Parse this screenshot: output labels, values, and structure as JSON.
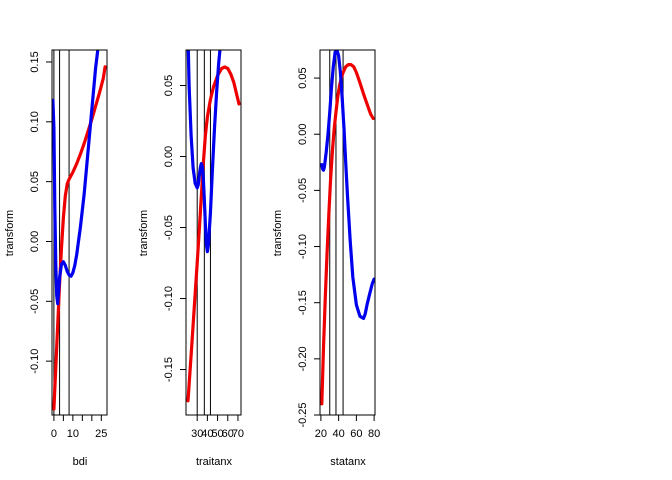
{
  "chart_data": [
    {
      "type": "line",
      "xlabel": "bdi",
      "ylabel": "transform",
      "xlim": [
        -1,
        28
      ],
      "ylim": [
        -0.145,
        0.16
      ],
      "xticks": [
        0,
        5,
        10,
        15,
        20,
        25
      ],
      "xtick_labels": [
        "0",
        "",
        "10",
        "",
        "",
        "25"
      ],
      "yticks": [
        -0.1,
        -0.05,
        0.0,
        0.05,
        0.1,
        0.15
      ],
      "ytick_labels": [
        "-0.10",
        "-0.05",
        "0.00",
        "0.05",
        "0.10",
        "0.15"
      ],
      "vlines": [
        0,
        3,
        8
      ],
      "series": [
        {
          "name": "red",
          "color": "#ee0000",
          "x": [
            0,
            1,
            2,
            3,
            4,
            5,
            6,
            7,
            8,
            10,
            12,
            14,
            16,
            18,
            20,
            22,
            24,
            26,
            27
          ],
          "y": [
            -0.14,
            -0.105,
            -0.07,
            -0.035,
            -0.005,
            0.02,
            0.038,
            0.048,
            0.052,
            0.058,
            0.065,
            0.073,
            0.082,
            0.092,
            0.102,
            0.113,
            0.124,
            0.136,
            0.146
          ]
        },
        {
          "name": "blue",
          "color": "#0000ee",
          "x": [
            -0.5,
            0,
            0.5,
            1,
            1.5,
            2,
            3,
            4,
            5,
            6,
            7,
            8,
            9,
            10,
            11,
            12,
            14,
            16,
            18,
            20,
            22,
            23.5
          ],
          "y": [
            0.118,
            0.095,
            0.03,
            -0.02,
            -0.045,
            -0.052,
            -0.03,
            -0.019,
            -0.017,
            -0.02,
            -0.025,
            -0.028,
            -0.029,
            -0.026,
            -0.02,
            -0.011,
            0.012,
            0.04,
            0.075,
            0.11,
            0.145,
            0.165
          ]
        }
      ]
    },
    {
      "type": "line",
      "xlabel": "traitanx",
      "ylabel": "transform",
      "xlim": [
        19,
        73
      ],
      "ylim": [
        -0.182,
        0.075
      ],
      "xticks": [
        30,
        40,
        50,
        60,
        70
      ],
      "xtick_labels": [
        "30",
        "40",
        "50",
        "60",
        "70"
      ],
      "yticks": [
        -0.15,
        -0.1,
        -0.05,
        0.0,
        0.05
      ],
      "ytick_labels": [
        "-0.15",
        "-0.10",
        "-0.05",
        "0.00",
        "0.05"
      ],
      "vlines": [
        30,
        37,
        43
      ],
      "series": [
        {
          "name": "red",
          "color": "#ee0000",
          "x": [
            21,
            24,
            27,
            30,
            33,
            36,
            38,
            40,
            43,
            46,
            50,
            54,
            57,
            60,
            63,
            66,
            69,
            71
          ],
          "y": [
            -0.172,
            -0.14,
            -0.108,
            -0.075,
            -0.04,
            -0.005,
            0.015,
            0.028,
            0.04,
            0.049,
            0.057,
            0.062,
            0.063,
            0.062,
            0.058,
            0.052,
            0.043,
            0.037
          ]
        },
        {
          "name": "blue",
          "color": "#0000ee",
          "x": [
            21,
            22,
            24,
            26,
            28,
            30,
            31,
            32,
            33,
            34,
            35,
            36,
            37,
            38,
            39,
            40,
            41,
            43,
            45,
            47,
            49,
            51,
            53,
            54
          ],
          "y": [
            0.085,
            0.05,
            0.015,
            -0.008,
            -0.019,
            -0.022,
            -0.02,
            -0.014,
            -0.008,
            -0.005,
            -0.007,
            -0.015,
            -0.03,
            -0.048,
            -0.062,
            -0.067,
            -0.062,
            -0.04,
            -0.008,
            0.02,
            0.045,
            0.065,
            0.08,
            0.09
          ]
        }
      ]
    },
    {
      "type": "line",
      "xlabel": "statanx",
      "ylabel": "transform",
      "xlim": [
        19,
        81
      ],
      "ylim": [
        -0.25,
        0.075
      ],
      "xticks": [
        20,
        40,
        60,
        80
      ],
      "xtick_labels": [
        "20",
        "40",
        "60",
        "80"
      ],
      "yticks": [
        -0.25,
        -0.2,
        -0.15,
        -0.1,
        -0.05,
        0.0,
        0.05
      ],
      "ytick_labels": [
        "-0.25",
        "-0.20",
        "-0.15",
        "-0.10",
        "-0.05",
        "0.00",
        "0.05"
      ],
      "vlines": [
        30,
        37,
        45
      ],
      "series": [
        {
          "name": "red",
          "color": "#ee0000",
          "x": [
            21,
            23,
            25,
            27,
            29,
            31,
            33,
            35,
            37,
            39,
            41,
            43,
            45,
            48,
            51,
            54,
            57,
            60,
            64,
            68,
            72,
            76,
            79
          ],
          "y": [
            -0.24,
            -0.19,
            -0.145,
            -0.105,
            -0.07,
            -0.04,
            -0.015,
            0.005,
            0.02,
            0.033,
            0.043,
            0.05,
            0.055,
            0.06,
            0.062,
            0.062,
            0.06,
            0.055,
            0.046,
            0.036,
            0.027,
            0.018,
            0.014
          ]
        },
        {
          "name": "blue",
          "color": "#0000ee",
          "x": [
            21,
            22,
            23,
            24,
            26,
            28,
            30,
            32,
            34,
            36,
            38,
            40,
            42,
            44,
            46,
            48,
            50,
            53,
            56,
            60,
            64,
            68,
            70,
            72,
            75,
            78,
            80
          ],
          "y": [
            -0.027,
            -0.031,
            -0.032,
            -0.029,
            -0.016,
            0.0,
            0.02,
            0.042,
            0.06,
            0.073,
            0.075,
            0.07,
            0.055,
            0.032,
            0.005,
            -0.025,
            -0.055,
            -0.095,
            -0.127,
            -0.152,
            -0.162,
            -0.164,
            -0.16,
            -0.152,
            -0.142,
            -0.133,
            -0.129
          ]
        }
      ]
    }
  ]
}
